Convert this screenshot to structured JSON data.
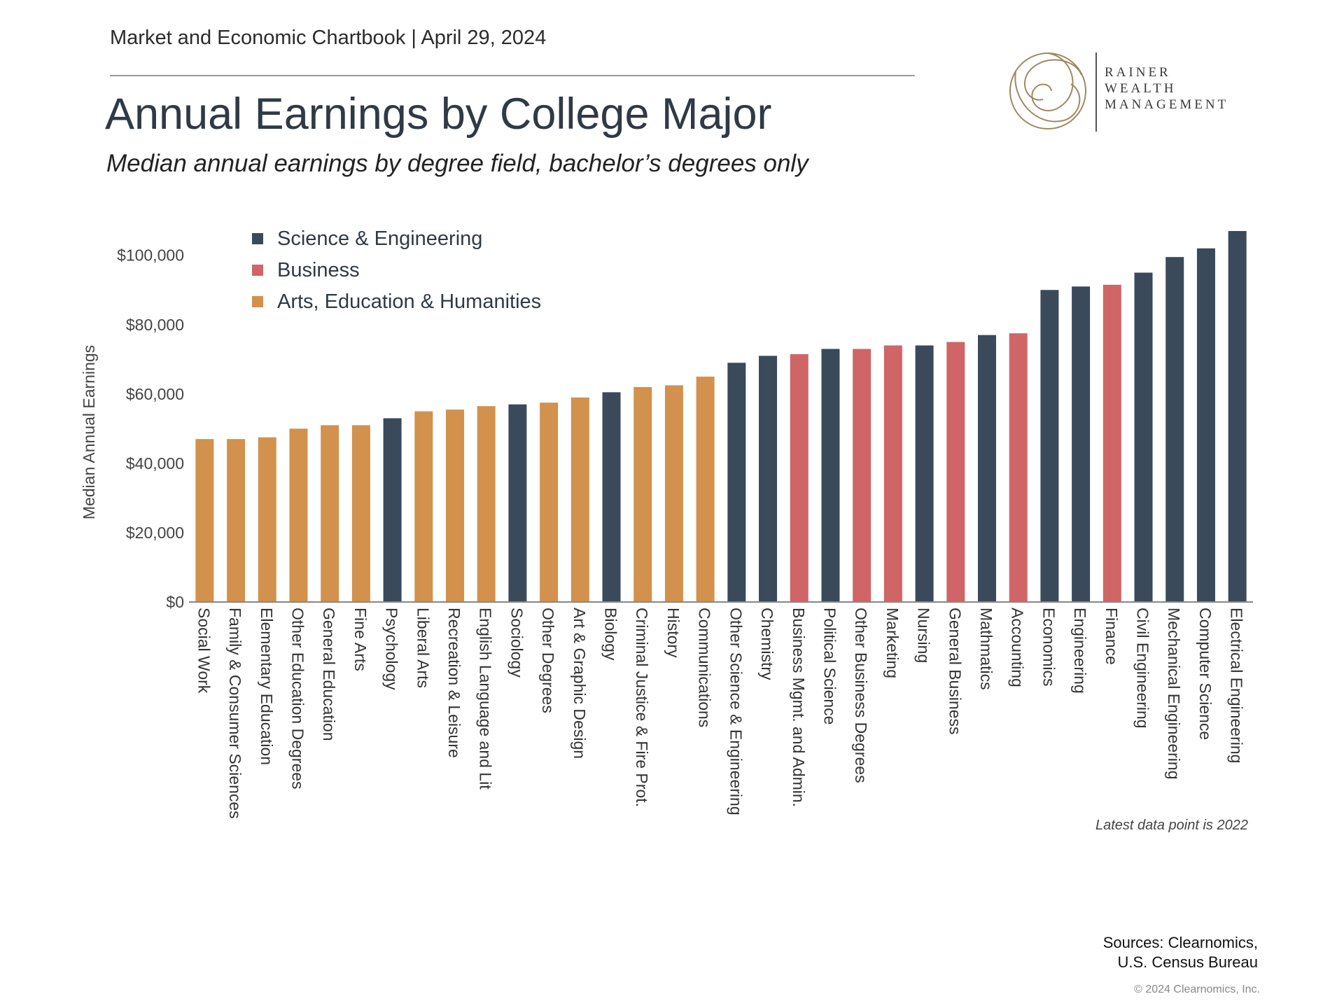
{
  "header": {
    "chartbook": "Market and Economic Chartbook | April 29, 2024",
    "title": "Annual Earnings by College Major",
    "subtitle": "Median annual earnings by degree field, bachelor’s degrees only"
  },
  "logo": {
    "line1": "RAINER",
    "line2": "WEALTH",
    "line3": "MANAGEMENT"
  },
  "colors": {
    "science": "#3a4a5b",
    "business": "#cf6566",
    "arts": "#d2914c",
    "axis_text": "#444444",
    "logo": "#a08862"
  },
  "chart_data": {
    "type": "bar",
    "ylabel": "Median Annual Earnings",
    "ylim": [
      0,
      106000
    ],
    "yticks": [
      0,
      20000,
      40000,
      60000,
      80000,
      100000
    ],
    "ytick_labels": [
      "$0",
      "$20,000",
      "$40,000",
      "$60,000",
      "$80,000",
      "$100,000"
    ],
    "legend": {
      "position": "top-left",
      "entries": [
        {
          "key": "science",
          "label": "Science & Engineering"
        },
        {
          "key": "business",
          "label": "Business"
        },
        {
          "key": "arts",
          "label": "Arts, Education & Humanities"
        }
      ]
    },
    "categories": [
      "Social Work",
      "Family & Consumer Sciences",
      "Elementary Education",
      "Other Education Degrees",
      "General Education",
      "Fine Arts",
      "Psychology",
      "Liberal Arts",
      "Recreation & Leisure",
      "English Language and Lit",
      "Sociology",
      "Other Degrees",
      "Art & Graphic Design",
      "Biology",
      "Criminal Justice & Fire Prot.",
      "History",
      "Communications",
      "Other Science & Engineering",
      "Chemistry",
      "Business Mgmt. and Admin.",
      "Political Science",
      "Other Business Degrees",
      "Marketing",
      "Nursing",
      "General Business",
      "Mathmatics",
      "Accounting",
      "Economics",
      "Engineering",
      "Finance",
      "Civil Engineering",
      "Mechanical Engineering",
      "Computer Science",
      "Electrical Engineering"
    ],
    "values": [
      47000,
      47000,
      47500,
      50000,
      51000,
      51000,
      53000,
      55000,
      55500,
      56500,
      57000,
      57500,
      59000,
      60500,
      62000,
      62500,
      65000,
      69000,
      71000,
      71500,
      73000,
      73000,
      74000,
      74000,
      75000,
      77000,
      77500,
      90000,
      91000,
      91500,
      95000,
      99500,
      102000,
      107000
    ],
    "groups": [
      "arts",
      "arts",
      "arts",
      "arts",
      "arts",
      "arts",
      "science",
      "arts",
      "arts",
      "arts",
      "science",
      "arts",
      "arts",
      "science",
      "arts",
      "arts",
      "arts",
      "science",
      "science",
      "business",
      "science",
      "business",
      "business",
      "science",
      "business",
      "science",
      "business",
      "science",
      "science",
      "business",
      "science",
      "science",
      "science",
      "science"
    ]
  },
  "footer": {
    "latest": "Latest data point is 2022",
    "sources_line1": "Sources: Clearnomics,",
    "sources_line2": "U.S. Census Bureau",
    "copyright": "© 2024 Clearnomics, Inc."
  }
}
